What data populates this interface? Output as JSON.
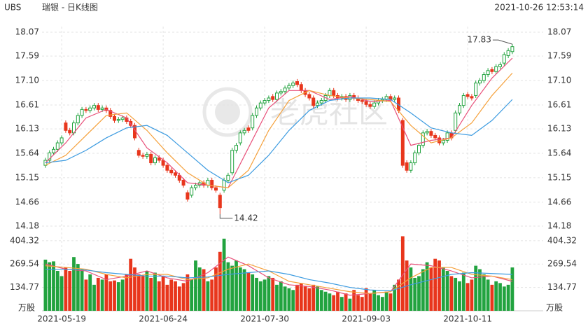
{
  "chart_data": {
    "type": "candlestick",
    "symbol": "UBS",
    "title": "瑞银 - 日K线图",
    "timestamp": "2021-10-26 12:53:14",
    "watermark": "老虎社区",
    "up_color": "#22a33f",
    "down_color": "#e8361c",
    "categories": [
      null,
      null,
      null,
      null,
      "2021-05-19",
      null,
      null,
      null,
      null,
      null,
      null,
      null,
      null,
      null,
      null,
      null,
      null,
      null,
      null,
      null,
      null,
      null,
      null,
      null,
      null,
      null,
      null,
      null,
      null,
      "2021-06-24",
      null,
      null,
      null,
      null,
      null,
      null,
      null,
      null,
      null,
      null,
      null,
      null,
      null,
      null,
      null,
      null,
      null,
      null,
      null,
      null,
      null,
      null,
      null,
      null,
      "2021-07-30",
      null,
      null,
      null,
      null,
      null,
      null,
      null,
      null,
      null,
      null,
      null,
      null,
      null,
      null,
      null,
      null,
      null,
      null,
      null,
      null,
      null,
      null,
      null,
      null,
      "2021-09-03",
      null,
      null,
      null,
      null,
      null,
      null,
      null,
      null,
      null,
      null,
      null,
      null,
      null,
      null,
      null,
      null,
      null,
      null,
      null,
      null,
      null,
      null,
      null,
      null,
      "2021-10-11",
      null,
      null,
      null,
      null,
      null,
      null,
      null,
      null,
      null,
      null,
      null
    ],
    "open": [
      15.4,
      15.5,
      15.65,
      15.72,
      15.85,
      16.25,
      16.1,
      16.05,
      16.25,
      16.4,
      16.52,
      16.5,
      16.55,
      16.6,
      16.52,
      16.55,
      16.5,
      16.38,
      16.3,
      16.32,
      16.35,
      16.28,
      16.2,
      15.7,
      15.6,
      15.58,
      15.62,
      15.45,
      15.55,
      15.5,
      15.4,
      15.3,
      15.25,
      15.2,
      15.1,
      14.85,
      14.8,
      14.95,
      15.0,
      15.05,
      15.0,
      15.1,
      14.95,
      14.8,
      14.9,
      15.1,
      15.25,
      15.7,
      15.85,
      16.05,
      16.15,
      16.15,
      16.4,
      16.55,
      16.65,
      16.7,
      16.78,
      16.72,
      16.85,
      16.88,
      16.95,
      17.0,
      17.08,
      17.02,
      16.9,
      16.82,
      16.75,
      16.6,
      16.65,
      16.7,
      16.8,
      16.9,
      16.8,
      16.75,
      16.78,
      16.72,
      16.8,
      16.75,
      16.7,
      16.68,
      16.62,
      16.58,
      16.65,
      16.7,
      16.72,
      16.78,
      16.72,
      16.75,
      16.3,
      15.45,
      15.3,
      15.45,
      15.65,
      15.8,
      16.05,
      16.08,
      16.0,
      15.95,
      15.85,
      15.9,
      16.05,
      16.1,
      16.45,
      16.6,
      16.82,
      16.78,
      16.8,
      17.05,
      17.1,
      17.22,
      17.32,
      17.28,
      17.38,
      17.45,
      17.6,
      17.68
    ],
    "high": [
      15.55,
      15.7,
      15.77,
      15.9,
      16.0,
      16.3,
      16.15,
      16.3,
      16.45,
      16.57,
      16.57,
      16.6,
      16.65,
      16.65,
      16.6,
      16.6,
      16.55,
      16.43,
      16.37,
      16.4,
      16.4,
      16.33,
      16.25,
      15.75,
      15.65,
      15.67,
      15.67,
      15.6,
      15.6,
      15.55,
      15.45,
      15.35,
      15.3,
      15.25,
      15.15,
      14.9,
      15.0,
      15.05,
      15.1,
      15.1,
      15.15,
      15.15,
      15.0,
      14.85,
      15.15,
      15.25,
      15.75,
      15.85,
      16.1,
      16.15,
      16.2,
      16.45,
      16.6,
      16.7,
      16.75,
      16.8,
      16.83,
      16.9,
      16.93,
      17.0,
      17.05,
      17.1,
      17.13,
      17.07,
      16.95,
      16.87,
      16.8,
      16.7,
      16.75,
      16.85,
      16.95,
      16.95,
      16.85,
      16.83,
      16.83,
      16.85,
      16.85,
      16.8,
      16.75,
      16.73,
      16.67,
      16.7,
      16.75,
      16.77,
      16.83,
      16.83,
      16.8,
      16.8,
      16.35,
      15.5,
      15.5,
      15.7,
      15.85,
      16.1,
      16.13,
      16.13,
      16.05,
      16.0,
      15.95,
      16.1,
      16.1,
      16.5,
      16.65,
      16.85,
      16.87,
      16.83,
      17.1,
      17.15,
      17.27,
      17.35,
      17.37,
      17.43,
      17.47,
      17.67,
      17.75,
      17.83
    ],
    "low": [
      15.35,
      15.45,
      15.6,
      15.67,
      15.8,
      16.05,
      16.0,
      16.0,
      16.2,
      16.35,
      16.45,
      16.45,
      16.5,
      16.47,
      16.47,
      16.45,
      16.33,
      16.25,
      16.25,
      16.27,
      16.23,
      16.15,
      15.9,
      15.55,
      15.53,
      15.53,
      15.4,
      15.4,
      15.45,
      15.35,
      15.25,
      15.2,
      15.15,
      15.05,
      14.95,
      14.67,
      14.75,
      14.9,
      14.95,
      14.95,
      14.95,
      14.9,
      14.85,
      14.42,
      14.85,
      15.05,
      15.2,
      15.65,
      15.8,
      16.0,
      16.05,
      16.1,
      16.35,
      16.5,
      16.6,
      16.65,
      16.67,
      16.67,
      16.8,
      16.83,
      16.9,
      16.95,
      16.97,
      16.85,
      16.77,
      16.7,
      16.55,
      16.55,
      16.6,
      16.65,
      16.75,
      16.75,
      16.7,
      16.7,
      16.67,
      16.67,
      16.7,
      16.65,
      16.63,
      16.57,
      16.53,
      16.53,
      16.6,
      16.65,
      16.67,
      16.67,
      16.67,
      16.45,
      15.35,
      15.25,
      15.25,
      15.4,
      15.6,
      15.75,
      16.0,
      15.95,
      15.9,
      15.8,
      15.8,
      15.85,
      15.9,
      16.05,
      16.4,
      16.55,
      16.73,
      16.7,
      16.75,
      17.0,
      17.05,
      17.17,
      17.23,
      17.23,
      17.33,
      17.4,
      17.55,
      17.63
    ],
    "close": [
      15.5,
      15.65,
      15.72,
      15.85,
      15.95,
      16.1,
      16.05,
      16.25,
      16.4,
      16.52,
      16.5,
      16.55,
      16.6,
      16.52,
      16.55,
      16.5,
      16.38,
      16.3,
      16.32,
      16.35,
      16.28,
      16.2,
      15.95,
      15.6,
      15.58,
      15.62,
      15.45,
      15.55,
      15.5,
      15.4,
      15.3,
      15.25,
      15.2,
      15.1,
      15.0,
      14.72,
      14.95,
      15.0,
      15.05,
      15.0,
      15.1,
      14.95,
      14.9,
      14.55,
      15.1,
      15.2,
      15.7,
      15.8,
      16.05,
      16.1,
      16.1,
      16.4,
      16.55,
      16.65,
      16.7,
      16.75,
      16.72,
      16.85,
      16.88,
      16.95,
      17.0,
      17.05,
      17.02,
      16.9,
      16.82,
      16.75,
      16.6,
      16.65,
      16.7,
      16.8,
      16.9,
      16.8,
      16.75,
      16.78,
      16.72,
      16.8,
      16.75,
      16.7,
      16.68,
      16.62,
      16.58,
      16.65,
      16.7,
      16.72,
      16.78,
      16.72,
      16.75,
      16.5,
      15.4,
      15.3,
      15.45,
      15.65,
      15.8,
      16.05,
      16.08,
      16.0,
      15.95,
      15.85,
      15.9,
      16.05,
      15.95,
      16.45,
      16.6,
      16.8,
      16.78,
      16.75,
      17.05,
      17.1,
      17.22,
      17.3,
      17.28,
      17.38,
      17.42,
      17.62,
      17.7,
      17.78
    ],
    "ylim": [
      14.18,
      18.07
    ],
    "yticks": [
      18.07,
      17.59,
      {
        "value": 17.1,
        "label": "17.10"
      },
      16.61,
      16.13,
      15.64,
      15.15,
      14.66,
      14.18
    ],
    "moving_averages": [
      {
        "color": "#e8507a",
        "x": [
          0,
          5,
          10,
          15,
          20,
          25,
          30,
          35,
          40,
          45,
          50,
          55,
          60,
          65,
          70,
          75,
          80,
          85,
          90,
          95,
          100,
          105,
          110,
          115
        ],
        "values": [
          15.45,
          15.85,
          16.35,
          16.52,
          16.35,
          15.75,
          15.45,
          15.05,
          15.0,
          14.95,
          15.75,
          16.55,
          16.9,
          16.9,
          16.72,
          16.78,
          16.68,
          16.7,
          15.8,
          15.9,
          15.95,
          16.6,
          17.15,
          17.55
        ]
      },
      {
        "color": "#f5a03a",
        "x": [
          0,
          5,
          10,
          15,
          20,
          25,
          30,
          35,
          40,
          45,
          50,
          55,
          60,
          65,
          70,
          75,
          80,
          85,
          90,
          95,
          100,
          105,
          110,
          115
        ],
        "values": [
          15.4,
          15.6,
          16.0,
          16.4,
          16.45,
          16.1,
          15.65,
          15.25,
          15.0,
          14.95,
          15.3,
          16.1,
          16.7,
          16.9,
          16.8,
          16.75,
          16.72,
          16.68,
          16.2,
          15.85,
          15.95,
          16.25,
          16.8,
          17.25
        ]
      },
      {
        "color": "#3c9be0",
        "x": [
          0,
          5,
          10,
          15,
          20,
          25,
          30,
          35,
          40,
          45,
          50,
          55,
          60,
          65,
          70,
          75,
          80,
          85,
          90,
          95,
          100,
          105,
          110,
          115
        ],
        "values": [
          15.45,
          15.5,
          15.7,
          15.95,
          16.15,
          16.2,
          16.0,
          15.65,
          15.3,
          15.05,
          15.2,
          15.6,
          16.1,
          16.5,
          16.7,
          16.75,
          16.75,
          16.72,
          16.45,
          16.15,
          16.05,
          16.0,
          16.3,
          16.72
        ]
      }
    ],
    "volume": [
      295,
      280,
      285,
      230,
      200,
      250,
      230,
      310,
      270,
      240,
      180,
      210,
      150,
      190,
      180,
      210,
      170,
      175,
      165,
      180,
      210,
      300,
      250,
      210,
      200,
      230,
      190,
      220,
      170,
      200,
      150,
      180,
      170,
      140,
      160,
      210,
      180,
      290,
      250,
      240,
      170,
      180,
      250,
      340,
      416,
      280,
      260,
      290,
      250,
      240,
      220,
      210,
      190,
      170,
      180,
      200,
      190,
      150,
      170,
      140,
      130,
      120,
      150,
      160,
      140,
      130,
      150,
      140,
      120,
      110,
      100,
      90,
      110,
      80,
      100,
      70,
      120,
      90,
      80,
      130,
      100,
      120,
      90,
      80,
      110,
      100,
      150,
      180,
      430,
      290,
      250,
      190,
      200,
      240,
      280,
      250,
      300,
      290,
      250,
      230,
      200,
      190,
      170,
      220,
      160,
      180,
      260,
      240,
      210,
      180,
      150,
      170,
      160,
      140,
      150,
      250
    ],
    "y2lim": [
      0,
      436
    ],
    "y2ticks": [
      404.32,
      269.54,
      134.77
    ],
    "volume_unit": "万股",
    "volume_averages": [
      {
        "color": "#e8507a",
        "x": [
          0,
          5,
          10,
          15,
          20,
          25,
          30,
          35,
          40,
          45,
          50,
          55,
          60,
          65,
          70,
          75,
          80,
          85,
          90,
          95,
          100,
          105,
          110,
          115
        ],
        "values": [
          270,
          240,
          230,
          180,
          200,
          230,
          190,
          170,
          220,
          310,
          260,
          190,
          150,
          140,
          120,
          90,
          100,
          110,
          270,
          260,
          230,
          190,
          200,
          170
        ]
      },
      {
        "color": "#f5a03a",
        "x": [
          0,
          5,
          10,
          15,
          20,
          25,
          30,
          35,
          40,
          45,
          50,
          55,
          60,
          65,
          70,
          75,
          80,
          85,
          90,
          95,
          100,
          105,
          110,
          115
        ],
        "values": [
          260,
          250,
          240,
          210,
          190,
          210,
          210,
          180,
          190,
          240,
          270,
          230,
          170,
          150,
          130,
          110,
          100,
          110,
          190,
          250,
          250,
          210,
          200,
          180
        ]
      },
      {
        "color": "#3c9be0",
        "x": [
          0,
          5,
          10,
          15,
          20,
          25,
          30,
          35,
          40,
          45,
          50,
          55,
          60,
          65,
          70,
          75,
          80,
          85,
          90,
          95,
          100,
          105,
          110,
          115
        ],
        "values": [
          240,
          240,
          235,
          220,
          210,
          200,
          200,
          190,
          195,
          210,
          220,
          230,
          210,
          180,
          160,
          135,
          120,
          115,
          150,
          180,
          210,
          220,
          215,
          210
        ]
      }
    ],
    "grid": true
  }
}
